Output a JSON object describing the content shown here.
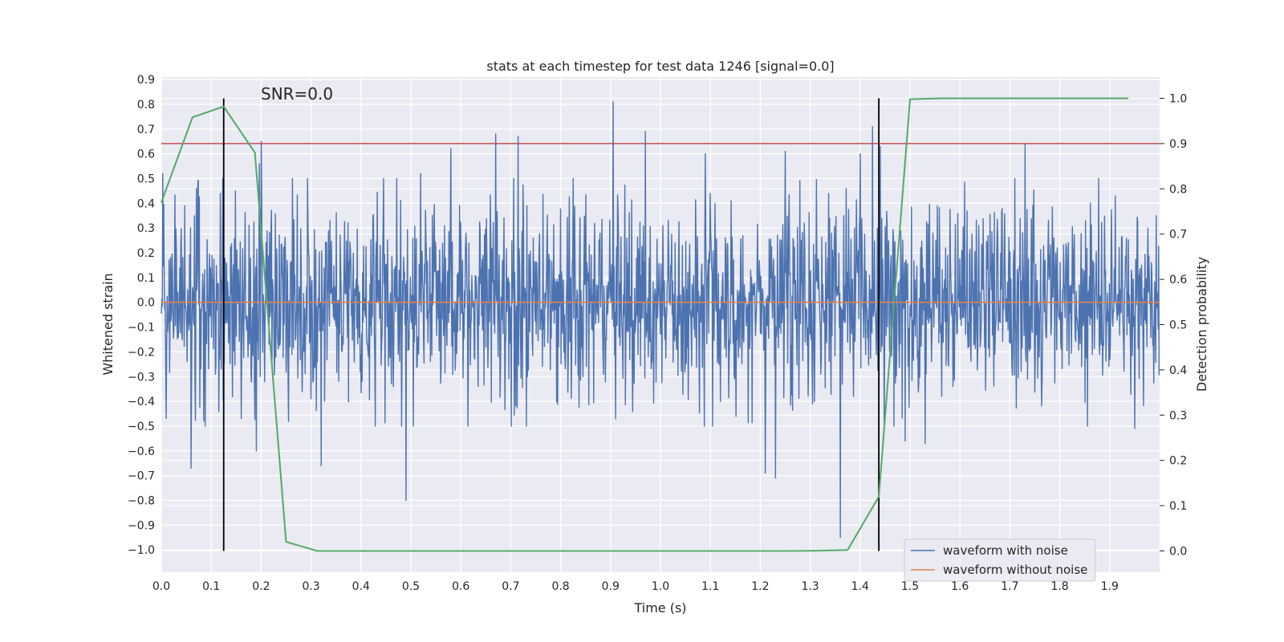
{
  "chart_data": {
    "type": "line",
    "title": "stats at each timestep for test data 1246 [signal=0.0]",
    "xlabel": "Time (s)",
    "ylabel": "Whitened strain",
    "y2label": "Detection probability",
    "annotation": "SNR=0.0",
    "xlim": [
      0.0,
      2.0
    ],
    "ylim": [
      -1.09,
      0.91
    ],
    "y2lim": [
      -0.047,
      1.047
    ],
    "xticks": [
      "0.0",
      "0.1",
      "0.2",
      "0.3",
      "0.4",
      "0.5",
      "0.6",
      "0.7",
      "0.8",
      "0.9",
      "1.0",
      "1.1",
      "1.2",
      "1.3",
      "1.4",
      "1.5",
      "1.6",
      "1.7",
      "1.8",
      "1.9"
    ],
    "yticks": [
      "0.9",
      "0.8",
      "0.7",
      "0.6",
      "0.5",
      "0.4",
      "0.3",
      "0.2",
      "0.1",
      "0.0",
      "−0.1",
      "−0.2",
      "−0.3",
      "−0.4",
      "−0.5",
      "−0.6",
      "−0.7",
      "−0.8",
      "−0.9",
      "−1.0"
    ],
    "y2ticks": [
      "0.0",
      "0.1",
      "0.2",
      "0.3",
      "0.4",
      "0.5",
      "0.6",
      "0.7",
      "0.8",
      "0.9",
      "1.0"
    ],
    "grid": true,
    "legend_placement": "lower-right",
    "series": [
      {
        "name": "waveform with noise",
        "color": "#4c72b0",
        "axis": "left",
        "samples": 2048,
        "std": 0.2,
        "spikes": [
          [
            0.003,
            0.52
          ],
          [
            0.01,
            -0.47
          ],
          [
            0.06,
            -0.67
          ],
          [
            0.07,
            0.46
          ],
          [
            0.085,
            -0.48
          ],
          [
            0.118,
            0.44
          ],
          [
            0.148,
            0.45
          ],
          [
            0.16,
            -0.47
          ],
          [
            0.19,
            -0.6
          ],
          [
            0.196,
            0.56
          ],
          [
            0.2,
            0.65
          ],
          [
            0.32,
            -0.66
          ],
          [
            0.49,
            -0.8
          ],
          [
            0.52,
            0.52
          ],
          [
            0.58,
            0.62
          ],
          [
            0.67,
            0.68
          ],
          [
            0.715,
            0.67
          ],
          [
            0.905,
            0.81
          ],
          [
            0.97,
            0.69
          ],
          [
            1.09,
            0.6
          ],
          [
            1.21,
            -0.69
          ],
          [
            1.23,
            -0.71
          ],
          [
            1.25,
            0.61
          ],
          [
            1.36,
            -0.95
          ],
          [
            1.4,
            0.6
          ],
          [
            1.425,
            0.71
          ],
          [
            1.44,
            0.63
          ],
          [
            1.49,
            -0.56
          ],
          [
            1.53,
            -0.57
          ],
          [
            1.73,
            0.64
          ],
          [
            1.95,
            -0.51
          ]
        ]
      },
      {
        "name": "waveform without noise",
        "color": "#dd8452",
        "axis": "left",
        "x": [
          0.0,
          2.0
        ],
        "y": [
          0.0,
          0.0
        ]
      },
      {
        "name": "",
        "color": "#55a868",
        "axis": "right",
        "x": [
          0.0,
          0.0625,
          0.125,
          0.1875,
          0.25,
          0.3125,
          0.375,
          0.4375,
          0.5,
          0.5625,
          0.625,
          0.6875,
          0.75,
          0.8125,
          0.875,
          0.9375,
          1.0,
          1.0625,
          1.125,
          1.1875,
          1.25,
          1.3125,
          1.375,
          1.4375,
          1.5,
          1.5625,
          1.625,
          1.6875,
          1.75,
          1.8125,
          1.875,
          1.9375
        ],
        "y": [
          0.77,
          0.958,
          0.982,
          0.88,
          0.02,
          0.0,
          0.0,
          0.0,
          0.0,
          0.0,
          0.0,
          0.0,
          0.0,
          0.0,
          0.0,
          0.0,
          0.0,
          0.0,
          0.0,
          0.0,
          0.0,
          0.0005,
          0.002,
          0.12,
          0.998,
          1.0,
          1.0,
          1.0,
          1.0,
          1.0,
          1.0,
          1.0
        ]
      }
    ],
    "threshold": {
      "axis": "right",
      "value": 0.9,
      "color": "#c44e52"
    },
    "vlines": {
      "x": [
        0.125,
        1.4375
      ],
      "ymin": 0.0,
      "ymax": 1.0,
      "color": "#000000"
    }
  }
}
